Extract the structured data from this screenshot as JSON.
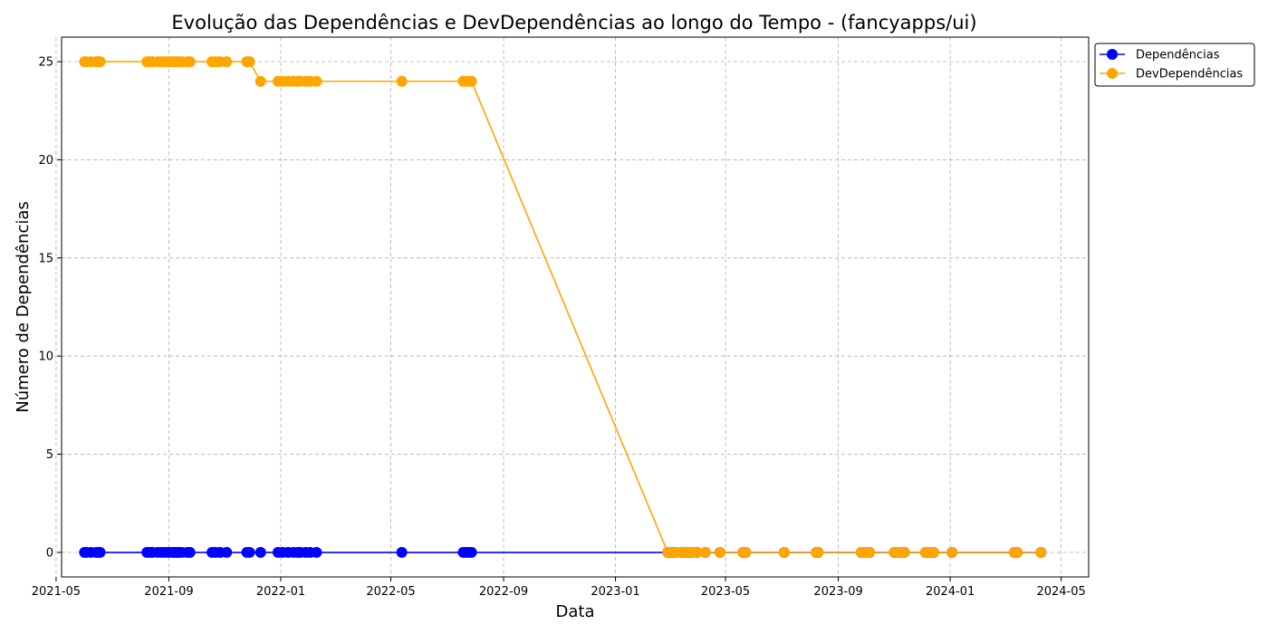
{
  "chart_data": {
    "type": "line",
    "title": "Evolução das Dependências e DevDependências ao longo do Tempo - (fancyapps/ui)",
    "xlabel": "Data",
    "ylabel": "Número de Dependências",
    "x_axis": "date",
    "xlim": [
      "2021-05-07",
      "2024-05-31"
    ],
    "ylim": [
      -1.25,
      26.25
    ],
    "x_ticks": [
      "2021-05",
      "2021-09",
      "2022-01",
      "2022-05",
      "2022-09",
      "2023-01",
      "2023-05",
      "2023-09",
      "2024-01",
      "2024-05"
    ],
    "x_tick_dates": [
      "2021-05-01",
      "2021-09-01",
      "2022-01-01",
      "2022-05-01",
      "2022-09-01",
      "2023-01-01",
      "2023-05-01",
      "2023-09-01",
      "2024-01-01",
      "2024-05-01"
    ],
    "y_ticks": [
      0,
      5,
      10,
      15,
      20,
      25
    ],
    "grid": true,
    "legend_position": "outside-top-right",
    "x": [
      "2021-06-01",
      "2021-06-03",
      "2021-06-08",
      "2021-06-14",
      "2021-06-16",
      "2021-06-18",
      "2021-08-08",
      "2021-08-11",
      "2021-08-14",
      "2021-08-20",
      "2021-08-24",
      "2021-08-28",
      "2021-09-01",
      "2021-09-05",
      "2021-09-07",
      "2021-09-10",
      "2021-09-12",
      "2021-09-15",
      "2021-09-21",
      "2021-09-24",
      "2021-10-18",
      "2021-10-22",
      "2021-10-27",
      "2021-11-03",
      "2021-11-25",
      "2021-11-28",
      "2021-12-10",
      "2021-12-29",
      "2022-01-03",
      "2022-01-09",
      "2022-01-15",
      "2022-01-20",
      "2022-01-22",
      "2022-01-28",
      "2022-02-02",
      "2022-02-09",
      "2022-05-13",
      "2022-07-19",
      "2022-07-22",
      "2022-07-25",
      "2022-07-28",
      "2023-02-27",
      "2023-03-01",
      "2023-03-03",
      "2023-03-05",
      "2023-03-08",
      "2023-03-14",
      "2023-03-16",
      "2023-03-18",
      "2023-03-20",
      "2023-03-23",
      "2023-03-26",
      "2023-03-31",
      "2023-04-09",
      "2023-04-25",
      "2023-05-20",
      "2023-05-23",
      "2023-07-04",
      "2023-08-08",
      "2023-08-10",
      "2023-09-26",
      "2023-09-30",
      "2023-10-05",
      "2023-11-01",
      "2023-11-04",
      "2023-11-07",
      "2023-11-12",
      "2023-12-05",
      "2023-12-07",
      "2023-12-10",
      "2023-12-14",
      "2024-01-03",
      "2024-03-11",
      "2024-03-14",
      "2024-04-09"
    ],
    "series": [
      {
        "name": "Dependências",
        "color": "#0000ff",
        "values": [
          0,
          0,
          0,
          0,
          0,
          0,
          0,
          0,
          0,
          0,
          0,
          0,
          0,
          0,
          0,
          0,
          0,
          0,
          0,
          0,
          0,
          0,
          0,
          0,
          0,
          0,
          0,
          0,
          0,
          0,
          0,
          0,
          0,
          0,
          0,
          0,
          0,
          0,
          0,
          0,
          0,
          0,
          0,
          0,
          0,
          0,
          0,
          0,
          0,
          0,
          0,
          0,
          0,
          0,
          0,
          0,
          0,
          0,
          0,
          0,
          0,
          0,
          0,
          0,
          0,
          0,
          0,
          0,
          0,
          0,
          0,
          0,
          0,
          0,
          0
        ]
      },
      {
        "name": "DevDependências",
        "color": "#ffa500",
        "values": [
          25,
          25,
          25,
          25,
          25,
          25,
          25,
          25,
          25,
          25,
          25,
          25,
          25,
          25,
          25,
          25,
          25,
          25,
          25,
          25,
          25,
          25,
          25,
          25,
          25,
          25,
          24,
          24,
          24,
          24,
          24,
          24,
          24,
          24,
          24,
          24,
          24,
          24,
          24,
          24,
          24,
          0,
          0,
          0,
          0,
          0,
          0,
          0,
          0,
          0,
          0,
          0,
          0,
          0,
          0,
          0,
          0,
          0,
          0,
          0,
          0,
          0,
          0,
          0,
          0,
          0,
          0,
          0,
          0,
          0,
          0,
          0,
          0,
          0,
          0
        ]
      }
    ]
  }
}
